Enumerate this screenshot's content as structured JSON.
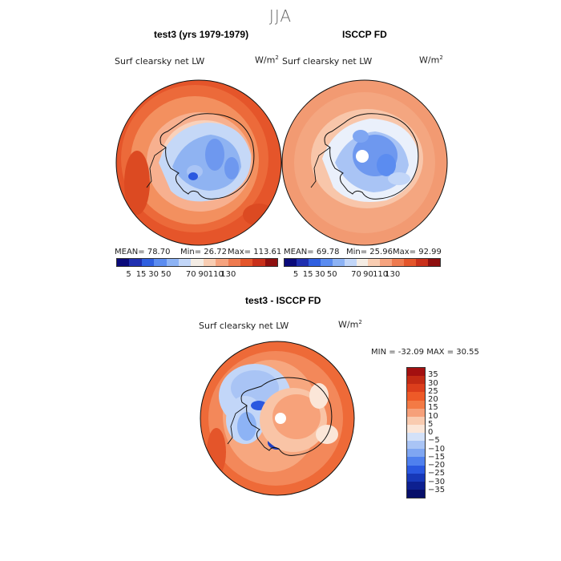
{
  "season": "JJA",
  "panels": {
    "model": {
      "title": "test3 (yrs 1979-1979)",
      "variable": "Surf clearsky net LW",
      "units": "W/m",
      "units_exp": "2",
      "mean": "MEAN=   78.70",
      "min": "Min=   26.72",
      "max": "Max=  113.61"
    },
    "obs": {
      "title": "ISCCP FD",
      "variable": "Surf clearsky net LW",
      "units": "W/m",
      "units_exp": "2",
      "mean": "MEAN=   69.78",
      "min": "Min=   25.96",
      "max": "Max=   92.99"
    },
    "diff": {
      "title": "test3 - ISCCP FD",
      "variable": "Surf clearsky net LW",
      "units": "W/m",
      "units_exp": "2",
      "minmax": "MIN = -32.09  MAX =   30.55"
    }
  },
  "colorbar_top": {
    "labels": [
      "5",
      "15",
      "30",
      "50",
      "70",
      "90",
      "110",
      "130"
    ],
    "colors": [
      "#0a0a7a",
      "#1f2fb0",
      "#2f5fe0",
      "#5b8cf0",
      "#8db3f5",
      "#c2d6f8",
      "#f4ece4",
      "#f9cdb2",
      "#f6a37e",
      "#ee7a4f",
      "#e4552a",
      "#c9301a",
      "#8e0f0f"
    ]
  },
  "colorbar_diff": {
    "labels": [
      "35",
      "30",
      "25",
      "20",
      "15",
      "10",
      "5",
      "0",
      "−5",
      "−10",
      "−15",
      "−20",
      "−25",
      "−30",
      "−35"
    ],
    "colors": [
      "#a31010",
      "#c22a14",
      "#dc3e1c",
      "#ee5a28",
      "#f37a45",
      "#f6a07a",
      "#f9cbb0",
      "#fbe6d8",
      "#d3e1f8",
      "#a9c4f5",
      "#7fa6f2",
      "#4f80ee",
      "#2a58e0",
      "#1738b8",
      "#0d2090",
      "#070f6a"
    ]
  }
}
